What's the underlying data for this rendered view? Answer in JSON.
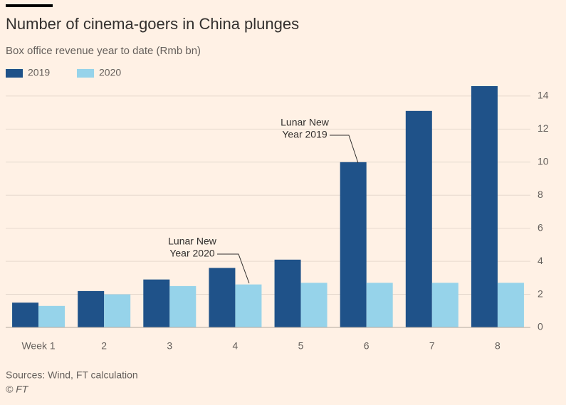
{
  "chart_data": {
    "type": "bar",
    "title": "Number of cinema-goers in China plunges",
    "subtitle": "Box office revenue year to date (Rmb bn)",
    "categories": [
      "Week 1",
      "2",
      "3",
      "4",
      "5",
      "6",
      "7",
      "8"
    ],
    "series": [
      {
        "name": "2019",
        "color": "#1f5289",
        "values": [
          1.5,
          2.2,
          2.9,
          3.6,
          4.1,
          10.0,
          13.1,
          14.6
        ]
      },
      {
        "name": "2020",
        "color": "#96d3ea",
        "values": [
          1.3,
          2.0,
          2.5,
          2.6,
          2.7,
          2.7,
          2.7,
          2.7
        ]
      }
    ],
    "ylim": [
      0,
      14.6
    ],
    "yticks": [
      0,
      2,
      4,
      6,
      8,
      10,
      12,
      14
    ],
    "grid": true,
    "annotations": [
      {
        "lines": [
          "Lunar New",
          "Year 2019"
        ]
      },
      {
        "lines": [
          "Lunar New",
          "Year 2020"
        ]
      }
    ],
    "source": "Sources: Wind, FT calculation",
    "credit": "© FT"
  }
}
